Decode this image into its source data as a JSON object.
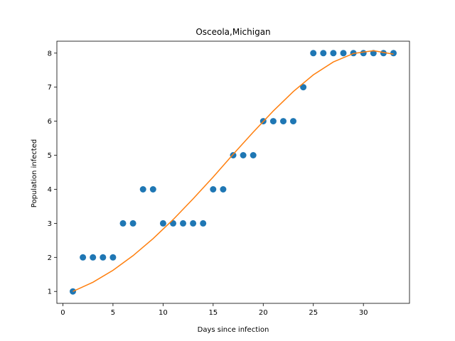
{
  "chart_data": {
    "type": "scatter",
    "title": "Osceola,Michigan",
    "xlabel": "Days since infection",
    "ylabel": "Population infected",
    "xlim": [
      -0.6,
      34.6
    ],
    "ylim": [
      0.65,
      8.35
    ],
    "xticks": [
      0,
      5,
      10,
      15,
      20,
      25,
      30
    ],
    "yticks": [
      1,
      2,
      3,
      4,
      5,
      6,
      7,
      8
    ],
    "grid": false,
    "series": [
      {
        "kind": "points",
        "color": "#1f77b4",
        "x": [
          1,
          2,
          3,
          4,
          5,
          6,
          7,
          8,
          9,
          10,
          11,
          12,
          13,
          14,
          15,
          16,
          17,
          18,
          19,
          20,
          21,
          22,
          23,
          24,
          25,
          26,
          27,
          28,
          29,
          30,
          31,
          32,
          33
        ],
        "y": [
          1,
          2,
          2,
          2,
          2,
          3,
          3,
          4,
          4,
          3,
          3,
          3,
          3,
          3,
          4,
          4,
          5,
          5,
          5,
          6,
          6,
          6,
          6,
          7,
          8,
          8,
          8,
          8,
          8,
          8,
          8,
          8,
          8
        ]
      },
      {
        "kind": "fit-line",
        "color": "#ff7f0e",
        "x": [
          1,
          3,
          5,
          7,
          9,
          11,
          13,
          15,
          17,
          19,
          21,
          23,
          25,
          27,
          29,
          31,
          33
        ],
        "y": [
          1.0,
          1.27,
          1.62,
          2.05,
          2.55,
          3.11,
          3.72,
          4.36,
          5.03,
          5.68,
          6.3,
          6.87,
          7.36,
          7.74,
          7.99,
          8.07,
          7.97
        ]
      }
    ]
  }
}
